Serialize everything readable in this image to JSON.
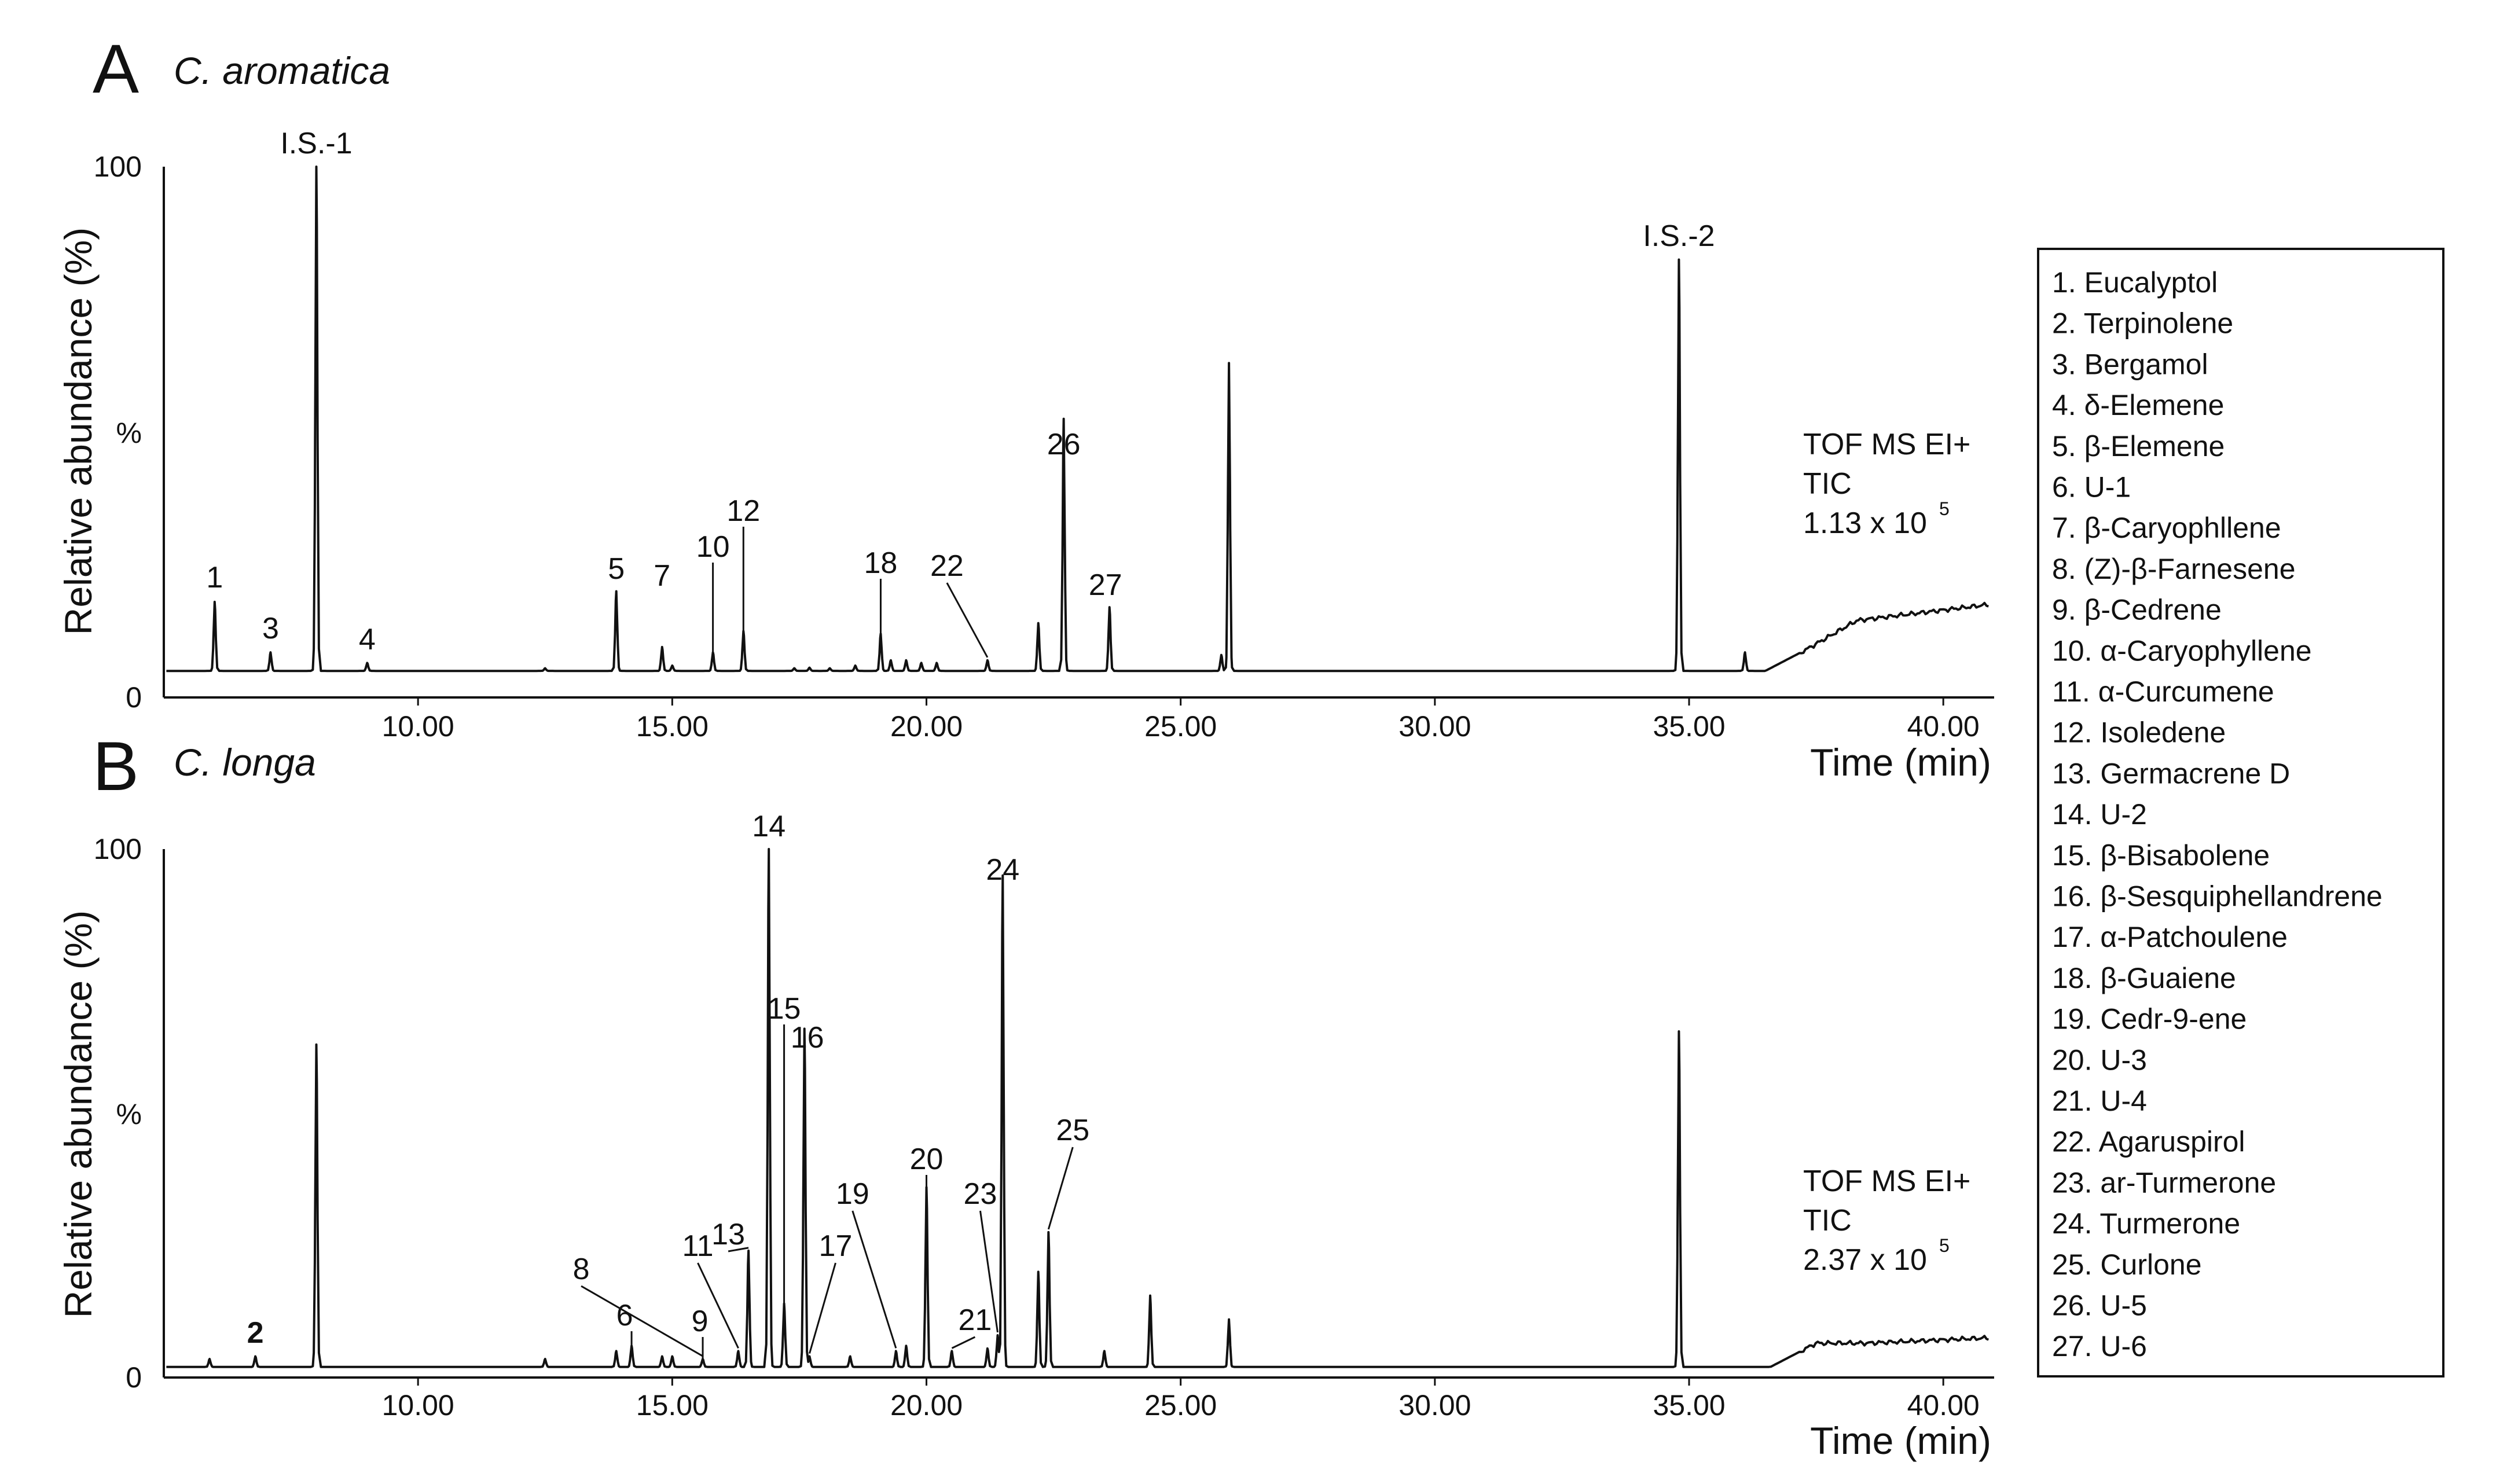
{
  "chart_data": [
    {
      "type": "line",
      "panel": "A",
      "title": "C. aromatica",
      "xlabel": "Time (min)",
      "ylabel": "Relative abundance (%)",
      "xlim": [
        5.0,
        41.0
      ],
      "ylim": [
        0,
        100
      ],
      "x_ticks": [
        10,
        15,
        20,
        25,
        30,
        35,
        40
      ],
      "x_tick_labels": [
        "10.00",
        "15.00",
        "20.00",
        "25.00",
        "30.00",
        "35.00",
        "40.00"
      ],
      "y_tick_labels": [
        "0",
        "%",
        "100"
      ],
      "annotation": [
        "TOF MS EI+",
        "TIC",
        "1.13 x 10",
        "5"
      ],
      "series": [
        {
          "baseline": 5.0,
          "drift": [
            [
              36.5,
              5.0
            ],
            [
              37.3,
              9.0
            ],
            [
              38.3,
              14.5
            ],
            [
              40.9,
              17.5
            ]
          ],
          "peaks": [
            [
              6.0,
              18.0
            ],
            [
              7.1,
              8.5
            ],
            [
              8.0,
              100
            ],
            [
              9.0,
              6.5
            ],
            [
              12.5,
              5.5
            ],
            [
              13.9,
              20.0
            ],
            [
              14.8,
              9.5
            ],
            [
              15.0,
              6.0
            ],
            [
              15.8,
              8.5
            ],
            [
              16.4,
              12.5
            ],
            [
              17.4,
              5.5
            ],
            [
              17.7,
              5.6
            ],
            [
              18.1,
              5.5
            ],
            [
              18.6,
              6.0
            ],
            [
              19.1,
              12.0
            ],
            [
              19.3,
              7.0
            ],
            [
              19.6,
              7.0
            ],
            [
              19.9,
              6.5
            ],
            [
              20.2,
              6.5
            ],
            [
              21.2,
              7.0
            ],
            [
              22.2,
              14.0
            ],
            [
              22.7,
              52.5
            ],
            [
              23.6,
              17.0
            ],
            [
              25.8,
              8.0
            ],
            [
              25.95,
              63.0
            ],
            [
              34.8,
              82.5
            ],
            [
              36.1,
              8.5
            ]
          ]
        }
      ],
      "peak_labels": [
        {
          "text": "I.S.-1",
          "x": 8.0,
          "y": 100
        },
        {
          "text": "I.S.-2",
          "x": 34.8,
          "y": 82.5
        },
        {
          "text": "1",
          "x": 6.0,
          "y": 18.0
        },
        {
          "text": "3",
          "x": 7.1,
          "y": 8.5
        },
        {
          "text": "4",
          "x": 9.0,
          "y": 6.5
        },
        {
          "text": "5",
          "x": 13.9,
          "y": 20.0
        },
        {
          "text": "7",
          "x": 14.8,
          "y": 9.5
        },
        {
          "text": "10",
          "x": 15.8,
          "y": 8.5
        },
        {
          "text": "12",
          "x": 16.4,
          "y": 12.5
        },
        {
          "text": "18",
          "x": 19.1,
          "y": 12.0
        },
        {
          "text": "22",
          "x": 21.2,
          "y": 7.0
        },
        {
          "text": "26",
          "x": 22.7,
          "y": 52.5
        },
        {
          "text": "27",
          "x": 23.6,
          "y": 17.0
        }
      ]
    },
    {
      "type": "line",
      "panel": "B",
      "title": "C. longa",
      "xlabel": "Time (min)",
      "ylabel": "Relative abundance (%)",
      "xlim": [
        5.0,
        41.0
      ],
      "ylim": [
        0,
        100
      ],
      "x_ticks": [
        10,
        15,
        20,
        25,
        30,
        35,
        40
      ],
      "x_tick_labels": [
        "10.00",
        "15.00",
        "20.00",
        "25.00",
        "30.00",
        "35.00",
        "40.00"
      ],
      "y_tick_labels": [
        "0",
        "%",
        "100"
      ],
      "annotation": [
        "TOF MS EI+",
        "TIC",
        "2.37 x 10",
        "5"
      ],
      "series": [
        {
          "baseline": 2.0,
          "drift": [
            [
              36.6,
              2.0
            ],
            [
              37.5,
              6.5
            ],
            [
              38.5,
              6.5
            ],
            [
              40.9,
              7.5
            ]
          ],
          "peaks": [
            [
              5.9,
              3.5
            ],
            [
              6.8,
              4.0
            ],
            [
              8.0,
              63.0
            ],
            [
              12.5,
              3.5
            ],
            [
              13.9,
              5.0
            ],
            [
              14.2,
              6.0
            ],
            [
              14.8,
              4.0
            ],
            [
              15.0,
              4.0
            ],
            [
              15.6,
              3.5
            ],
            [
              16.3,
              5.0
            ],
            [
              16.5,
              24.0
            ],
            [
              16.9,
              100
            ],
            [
              17.2,
              14.0
            ],
            [
              17.6,
              66.0
            ],
            [
              17.7,
              4.0
            ],
            [
              18.5,
              4.0
            ],
            [
              19.4,
              5.0
            ],
            [
              19.6,
              6.0
            ],
            [
              20.0,
              36.0
            ],
            [
              20.5,
              5.0
            ],
            [
              21.2,
              5.5
            ],
            [
              21.4,
              8.0
            ],
            [
              21.5,
              95.0
            ],
            [
              22.2,
              20.0
            ],
            [
              22.4,
              27.5
            ],
            [
              23.5,
              5.0
            ],
            [
              24.4,
              15.5
            ],
            [
              25.95,
              11.0
            ],
            [
              34.8,
              65.5
            ]
          ]
        }
      ],
      "peak_labels": [
        {
          "text": "2",
          "x": 6.8,
          "y": 4.0
        },
        {
          "text": "6",
          "x": 14.2,
          "y": 6.0
        },
        {
          "text": "8",
          "x": 15.6,
          "y": 3.5
        },
        {
          "text": "9",
          "x": 15.6,
          "y": 3.5
        },
        {
          "text": "11",
          "x": 16.3,
          "y": 5.0
        },
        {
          "text": "13",
          "x": 16.5,
          "y": 24.0
        },
        {
          "text": "14",
          "x": 16.9,
          "y": 100
        },
        {
          "text": "15",
          "x": 17.2,
          "y": 14.0
        },
        {
          "text": "16",
          "x": 17.6,
          "y": 66.0
        },
        {
          "text": "17",
          "x": 17.7,
          "y": 4.0
        },
        {
          "text": "19",
          "x": 19.4,
          "y": 5.0
        },
        {
          "text": "20",
          "x": 20.0,
          "y": 36.0
        },
        {
          "text": "21",
          "x": 20.5,
          "y": 5.0
        },
        {
          "text": "23",
          "x": 21.4,
          "y": 8.0
        },
        {
          "text": "24",
          "x": 21.5,
          "y": 95.0
        },
        {
          "text": "25",
          "x": 22.4,
          "y": 27.5
        }
      ]
    }
  ],
  "legend": [
    "1. Eucalyptol",
    "2. Terpinolene",
    "3. Bergamol",
    "4. δ-Elemene",
    "5. β-Elemene",
    "6. U-1",
    "7. β-Caryophllene",
    "8. (Z)-β-Farnesene",
    "9. β-Cedrene",
    "10. α-Caryophyllene",
    "11. α-Curcumene",
    "12. Isoledene",
    "13. Germacrene D",
    "14. U-2",
    "15. β-Bisabolene",
    "16. β-Sesquiphellandrene",
    "17. α-Patchoulene",
    "18. β-Guaiene",
    "19. Cedr-9-ene",
    "20. U-3",
    "21. U-4",
    "22. Agaruspirol",
    "23. ar-Turmerone",
    "24. Turmerone",
    "25. Curlone",
    "26. U-5",
    "27. U-6"
  ]
}
